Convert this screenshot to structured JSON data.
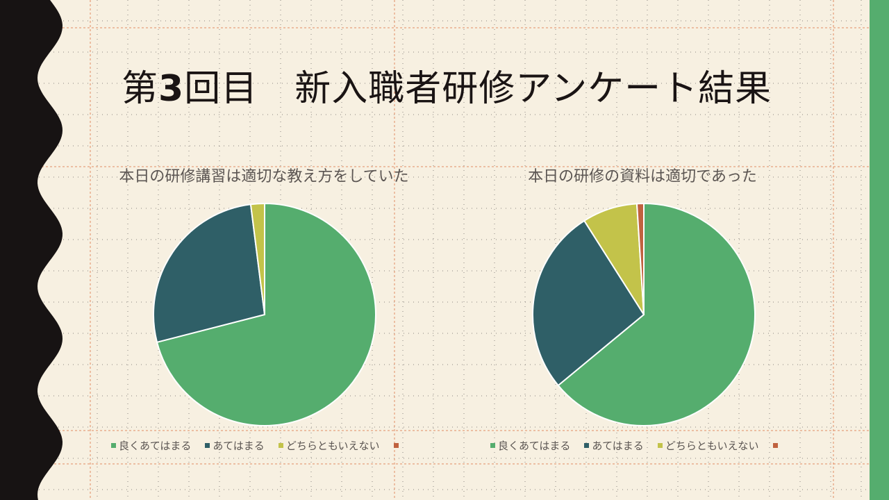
{
  "slide": {
    "title_prefix": "第",
    "title_number": "3",
    "title_suffix": "回目　新入職者研修アンケート結果"
  },
  "colors": {
    "background": "#f7f0e1",
    "left_band": "#171313",
    "right_band": "#55ad6e",
    "grid_line": "#e08b62"
  },
  "chart_data": [
    {
      "type": "pie",
      "title": "本日の研修講習は適切な教え方をしていた",
      "categories": [
        "良くあてはまる",
        "あてはまる",
        "どちらともいえない",
        ""
      ],
      "values": [
        71,
        27,
        2,
        0
      ],
      "colors": [
        "#55ad6e",
        "#2f5f67",
        "#c3c34a",
        "#c0623f"
      ],
      "legend": "bottom"
    },
    {
      "type": "pie",
      "title": "本日の研修の資料は適切であった",
      "categories": [
        "良くあてはまる",
        "あてはまる",
        "どちらともいえない",
        ""
      ],
      "values": [
        64,
        27,
        8,
        1
      ],
      "colors": [
        "#55ad6e",
        "#2f5f67",
        "#c3c34a",
        "#c0623f"
      ],
      "legend": "bottom"
    }
  ]
}
